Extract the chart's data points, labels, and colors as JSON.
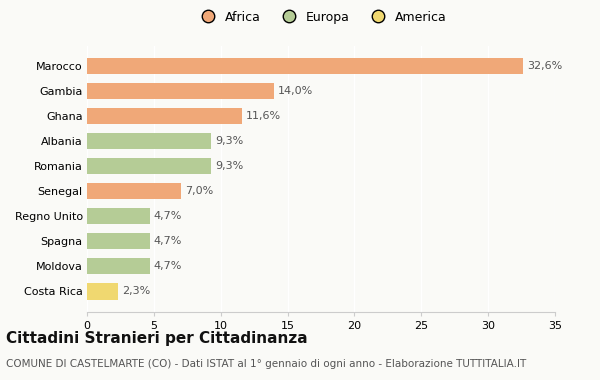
{
  "categories": [
    "Marocco",
    "Gambia",
    "Ghana",
    "Albania",
    "Romania",
    "Senegal",
    "Regno Unito",
    "Spagna",
    "Moldova",
    "Costa Rica"
  ],
  "values": [
    32.6,
    14.0,
    11.6,
    9.3,
    9.3,
    7.0,
    4.7,
    4.7,
    4.7,
    2.3
  ],
  "labels": [
    "32,6%",
    "14,0%",
    "11,6%",
    "9,3%",
    "9,3%",
    "7,0%",
    "4,7%",
    "4,7%",
    "4,7%",
    "2,3%"
  ],
  "colors": [
    "#F0A878",
    "#F0A878",
    "#F0A878",
    "#B5CC96",
    "#B5CC96",
    "#F0A878",
    "#B5CC96",
    "#B5CC96",
    "#B5CC96",
    "#F0D870"
  ],
  "legend_labels": [
    "Africa",
    "Europa",
    "America"
  ],
  "legend_colors": [
    "#F0A878",
    "#B5CC96",
    "#F0D870"
  ],
  "title": "Cittadini Stranieri per Cittadinanza",
  "subtitle": "COMUNE DI CASTELMARTE (CO) - Dati ISTAT al 1° gennaio di ogni anno - Elaborazione TUTTITALIA.IT",
  "xlim": [
    0,
    35
  ],
  "xticks": [
    0,
    5,
    10,
    15,
    20,
    25,
    30,
    35
  ],
  "bg_color": "#FAFAF7",
  "title_fontsize": 11,
  "subtitle_fontsize": 7.5,
  "tick_fontsize": 8,
  "label_fontsize": 8
}
